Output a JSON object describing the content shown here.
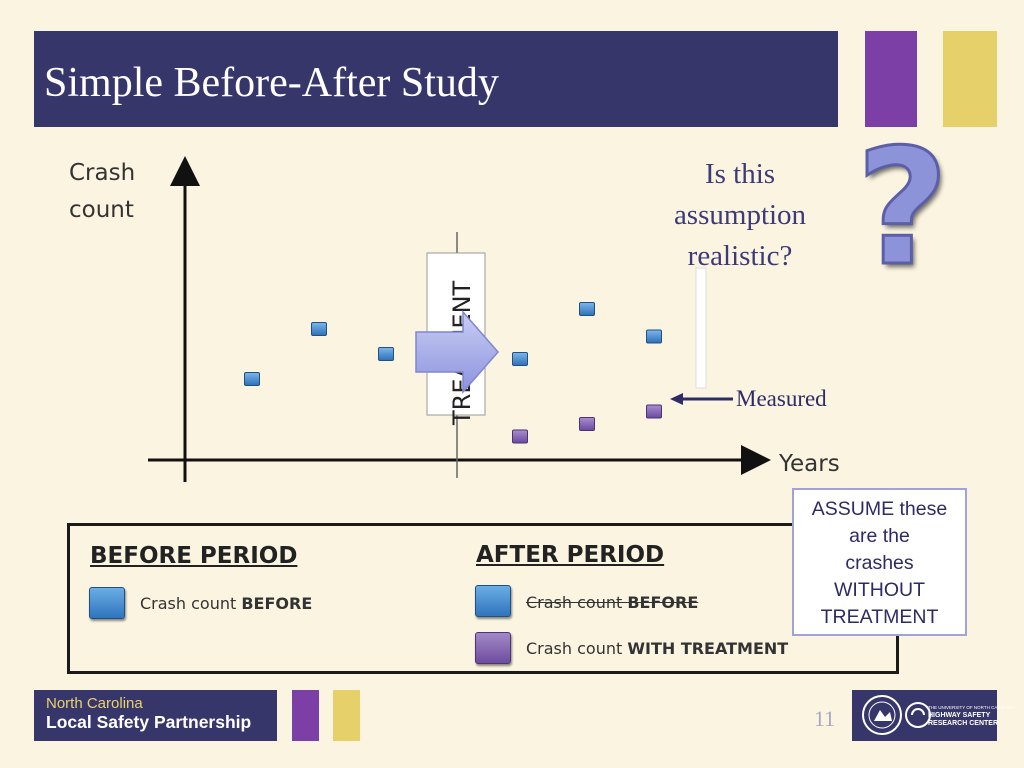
{
  "title": "Simple Before-After Study",
  "colors": {
    "title_bar": "#37366b",
    "accent_purple": "#7c3fa6",
    "accent_gold": "#e6d06a",
    "background": "#fbf4e0",
    "arrow_red": "#c0161d"
  },
  "chart_data": {
    "type": "scatter",
    "ylabel_line1": "Crash",
    "ylabel_line2": "count",
    "xlabel": "Years",
    "treatment_label": "TREATMENT",
    "series": [
      {
        "name": "Crash count BEFORE",
        "period": "before",
        "color": "#3a80c8",
        "points": [
          [
            1,
            3
          ],
          [
            2,
            5
          ],
          [
            3,
            4
          ]
        ]
      },
      {
        "name": "Crash count BEFORE",
        "period": "after",
        "color": "#3a80c8",
        "points": [
          [
            5,
            3.8
          ],
          [
            6,
            5.8
          ],
          [
            7,
            4.7
          ]
        ]
      },
      {
        "name": "Crash count WITH TREATMENT",
        "period": "after",
        "color": "#7c55b0",
        "points": [
          [
            5,
            0.7
          ],
          [
            6,
            1.2
          ],
          [
            7,
            1.7
          ]
        ]
      }
    ]
  },
  "question": {
    "line1": "Is this",
    "line2": "assumption",
    "line3": "realistic?"
  },
  "measured_label": "Measured",
  "legend": {
    "before_heading": "BEFORE PERIOD",
    "after_heading": "AFTER PERIOD",
    "before_item": {
      "prefix": "Crash count ",
      "bold": "BEFORE"
    },
    "after_item1": {
      "prefix": "Crash count ",
      "bold": "BEFORE"
    },
    "after_item2": {
      "prefix": "Crash count ",
      "bold": "WITH TREATMENT"
    }
  },
  "assume_box": {
    "line1": "ASSUME these",
    "line2": "are the",
    "line3": "crashes",
    "line4": "WITHOUT",
    "line5": "TREATMENT"
  },
  "footer": {
    "line1": "North Carolina",
    "line2": "Local Safety Partnership",
    "page_number": "11",
    "logo_text_1": "THE UNIVERSITY OF NORTH CAROLINA",
    "logo_text_2": "HIGHWAY SAFETY",
    "logo_text_3": "RESEARCH CENTER"
  }
}
